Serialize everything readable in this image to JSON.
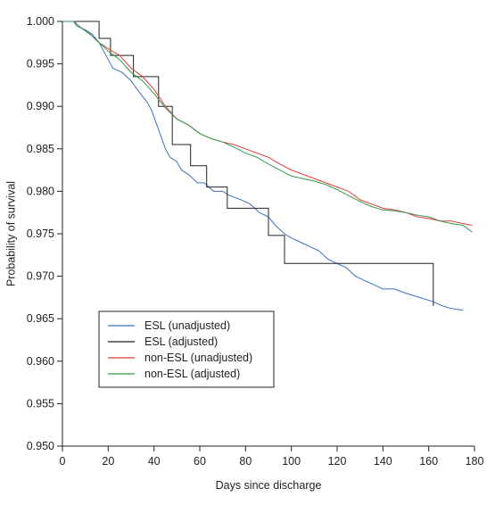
{
  "chart_data": {
    "type": "line",
    "title": "",
    "xlabel": "Days since discharge",
    "ylabel": "Probability of survival",
    "xlim": [
      0,
      180
    ],
    "ylim": [
      0.95,
      1.0
    ],
    "x_ticks": [
      0,
      20,
      40,
      60,
      80,
      100,
      120,
      140,
      160,
      180
    ],
    "y_ticks": [
      0.95,
      0.955,
      0.96,
      0.965,
      0.97,
      0.975,
      0.98,
      0.985,
      0.99,
      0.995,
      1.0
    ],
    "x_tick_labels": [
      "0",
      "20",
      "40",
      "60",
      "80",
      "100",
      "120",
      "140",
      "160",
      "180"
    ],
    "y_tick_labels": [
      "0.950",
      "0.955",
      "0.960",
      "0.965",
      "0.970",
      "0.975",
      "0.980",
      "0.985",
      "0.990",
      "0.995",
      "1.000"
    ],
    "grid": false,
    "legend_position": "lower-left",
    "series": [
      {
        "name": "ESL (unadjusted)",
        "color": "#3a6fc4",
        "points": [
          [
            0,
            1.0
          ],
          [
            5,
            1.0
          ],
          [
            6,
            0.9995
          ],
          [
            10,
            0.999
          ],
          [
            13,
            0.9985
          ],
          [
            16,
            0.9975
          ],
          [
            18,
            0.9965
          ],
          [
            20,
            0.9955
          ],
          [
            22,
            0.9945
          ],
          [
            26,
            0.994
          ],
          [
            30,
            0.993
          ],
          [
            34,
            0.9915
          ],
          [
            37,
            0.9905
          ],
          [
            39,
            0.9895
          ],
          [
            41,
            0.988
          ],
          [
            43,
            0.9865
          ],
          [
            45,
            0.985
          ],
          [
            47,
            0.984
          ],
          [
            50,
            0.9835
          ],
          [
            52,
            0.9825
          ],
          [
            55,
            0.982
          ],
          [
            59,
            0.981
          ],
          [
            62,
            0.981
          ],
          [
            66,
            0.98
          ],
          [
            70,
            0.98
          ],
          [
            73,
            0.9795
          ],
          [
            78,
            0.979
          ],
          [
            82,
            0.9785
          ],
          [
            86,
            0.9775
          ],
          [
            90,
            0.977
          ],
          [
            93,
            0.976
          ],
          [
            97,
            0.975
          ],
          [
            100,
            0.9745
          ],
          [
            104,
            0.974
          ],
          [
            108,
            0.9735
          ],
          [
            112,
            0.973
          ],
          [
            116,
            0.972
          ],
          [
            120,
            0.9715
          ],
          [
            124,
            0.971
          ],
          [
            128,
            0.97
          ],
          [
            132,
            0.9695
          ],
          [
            136,
            0.969
          ],
          [
            140,
            0.9685
          ],
          [
            145,
            0.9685
          ],
          [
            150,
            0.968
          ],
          [
            156,
            0.9675
          ],
          [
            162,
            0.967
          ],
          [
            166,
            0.9665
          ],
          [
            170,
            0.9662
          ],
          [
            175,
            0.966
          ]
        ]
      },
      {
        "name": "ESL (adjusted)",
        "color": "#222222",
        "points": [
          [
            0,
            1.0
          ],
          [
            16,
            1.0
          ],
          [
            16,
            0.998
          ],
          [
            21,
            0.998
          ],
          [
            21,
            0.996
          ],
          [
            31,
            0.996
          ],
          [
            31,
            0.9935
          ],
          [
            42,
            0.9935
          ],
          [
            42,
            0.99
          ],
          [
            48,
            0.99
          ],
          [
            48,
            0.9855
          ],
          [
            56,
            0.9855
          ],
          [
            56,
            0.983
          ],
          [
            63,
            0.983
          ],
          [
            63,
            0.9805
          ],
          [
            72,
            0.9805
          ],
          [
            72,
            0.978
          ],
          [
            90,
            0.978
          ],
          [
            90,
            0.9748
          ],
          [
            97,
            0.9748
          ],
          [
            97,
            0.9715
          ],
          [
            162,
            0.9715
          ],
          [
            162,
            0.9665
          ]
        ]
      },
      {
        "name": "non-ESL (unadjusted)",
        "color": "#e03b3b",
        "points": [
          [
            0,
            1.0
          ],
          [
            5,
            1.0
          ],
          [
            8,
            0.9993
          ],
          [
            12,
            0.9985
          ],
          [
            16,
            0.9975
          ],
          [
            20,
            0.9968
          ],
          [
            25,
            0.996
          ],
          [
            30,
            0.9945
          ],
          [
            35,
            0.9935
          ],
          [
            40,
            0.992
          ],
          [
            45,
            0.99
          ],
          [
            50,
            0.9885
          ],
          [
            55,
            0.9878
          ],
          [
            60,
            0.9868
          ],
          [
            65,
            0.9862
          ],
          [
            70,
            0.9858
          ],
          [
            75,
            0.9855
          ],
          [
            80,
            0.985
          ],
          [
            85,
            0.9845
          ],
          [
            90,
            0.984
          ],
          [
            95,
            0.9832
          ],
          [
            100,
            0.9825
          ],
          [
            105,
            0.982
          ],
          [
            110,
            0.9815
          ],
          [
            115,
            0.981
          ],
          [
            120,
            0.9805
          ],
          [
            125,
            0.98
          ],
          [
            130,
            0.979
          ],
          [
            135,
            0.9785
          ],
          [
            140,
            0.978
          ],
          [
            145,
            0.9778
          ],
          [
            150,
            0.9775
          ],
          [
            155,
            0.977
          ],
          [
            160,
            0.9768
          ],
          [
            165,
            0.9765
          ],
          [
            170,
            0.9765
          ],
          [
            175,
            0.9762
          ],
          [
            179,
            0.976
          ]
        ]
      },
      {
        "name": "non-ESL (adjusted)",
        "color": "#2f9a4a",
        "points": [
          [
            0,
            1.0
          ],
          [
            5,
            1.0
          ],
          [
            8,
            0.9993
          ],
          [
            12,
            0.9985
          ],
          [
            16,
            0.9975
          ],
          [
            20,
            0.9965
          ],
          [
            25,
            0.9955
          ],
          [
            30,
            0.994
          ],
          [
            35,
            0.993
          ],
          [
            40,
            0.9915
          ],
          [
            45,
            0.9898
          ],
          [
            50,
            0.9885
          ],
          [
            55,
            0.9878
          ],
          [
            60,
            0.9868
          ],
          [
            65,
            0.9862
          ],
          [
            70,
            0.9858
          ],
          [
            75,
            0.9852
          ],
          [
            80,
            0.9845
          ],
          [
            85,
            0.984
          ],
          [
            90,
            0.9832
          ],
          [
            95,
            0.9825
          ],
          [
            100,
            0.9818
          ],
          [
            105,
            0.9815
          ],
          [
            110,
            0.9812
          ],
          [
            115,
            0.9808
          ],
          [
            120,
            0.9802
          ],
          [
            125,
            0.9795
          ],
          [
            130,
            0.9788
          ],
          [
            135,
            0.9782
          ],
          [
            140,
            0.9778
          ],
          [
            145,
            0.9777
          ],
          [
            150,
            0.9775
          ],
          [
            155,
            0.9772
          ],
          [
            160,
            0.977
          ],
          [
            165,
            0.9765
          ],
          [
            170,
            0.9762
          ],
          [
            175,
            0.976
          ],
          [
            179,
            0.9752
          ]
        ]
      }
    ]
  }
}
